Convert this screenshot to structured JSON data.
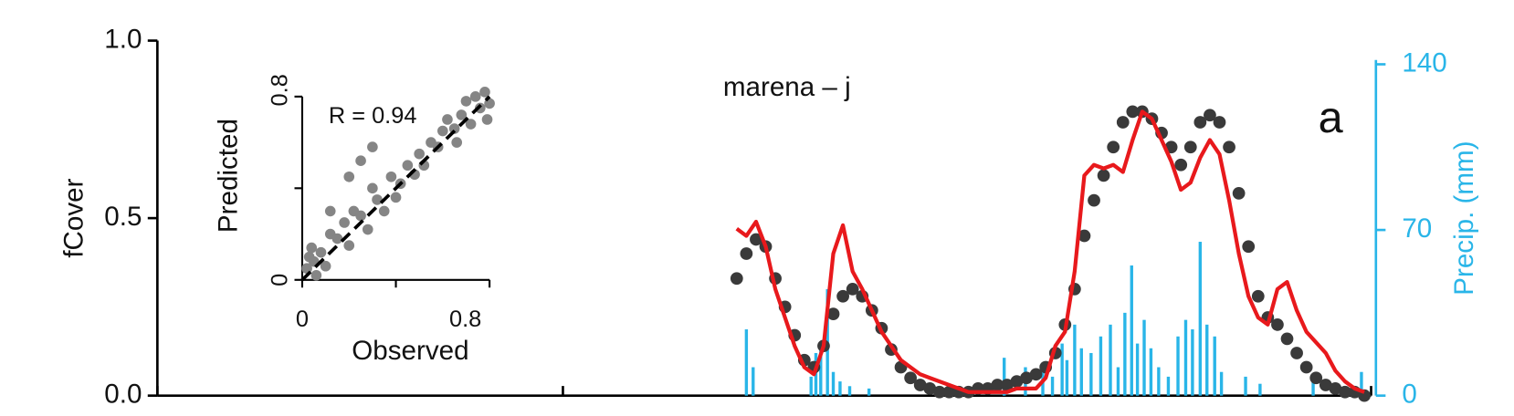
{
  "chart_data": [
    {
      "type": "combo",
      "title": "marena – j",
      "panel_label": "a",
      "y_label": "fCover",
      "y2_label": "Precip. (mm)",
      "xlim": [
        0,
        1257
      ],
      "xticks": [
        0,
        420,
        840,
        1257
      ],
      "ylim": [
        0,
        1
      ],
      "yticks": [
        {
          "value": 0,
          "label": "0.0"
        },
        {
          "value": 0.5,
          "label": "0.5"
        },
        {
          "value": 1,
          "label": "1.0"
        }
      ],
      "y2lim": [
        0,
        150
      ],
      "y2ticks": [
        0,
        70,
        140
      ],
      "y2_color": "#29b5e8",
      "x": [
        600,
        610,
        620,
        630,
        640,
        650,
        660,
        670,
        680,
        690,
        700,
        710,
        720,
        730,
        740,
        750,
        760,
        770,
        780,
        790,
        800,
        810,
        820,
        830,
        840,
        850,
        860,
        870,
        880,
        890,
        900,
        910,
        920,
        930,
        940,
        950,
        960,
        970,
        980,
        990,
        1000,
        1010,
        1020,
        1030,
        1040,
        1050,
        1060,
        1070,
        1080,
        1090,
        1100,
        1110,
        1120,
        1130,
        1140,
        1150,
        1160,
        1170,
        1180,
        1190,
        1200,
        1210,
        1220,
        1230,
        1240,
        1250
      ],
      "series": [
        {
          "type": "scatter",
          "color": "#3a3a3a",
          "values": [
            0.33,
            0.4,
            0.44,
            0.42,
            0.33,
            0.25,
            0.17,
            0.1,
            0.08,
            0.14,
            0.23,
            0.28,
            0.3,
            0.28,
            0.24,
            0.19,
            0.13,
            0.08,
            0.05,
            0.03,
            0.02,
            0.01,
            0.01,
            0.01,
            0.01,
            0.02,
            0.02,
            0.03,
            0.03,
            0.04,
            0.05,
            0.06,
            0.08,
            0.12,
            0.2,
            0.3,
            0.45,
            0.55,
            0.62,
            0.7,
            0.77,
            0.8,
            0.8,
            0.78,
            0.74,
            0.7,
            0.65,
            0.7,
            0.77,
            0.79,
            0.77,
            0.7,
            0.57,
            0.42,
            0.28,
            0.22,
            0.2,
            0.16,
            0.12,
            0.08,
            0.05,
            0.03,
            0.02,
            0.01,
            0.01,
            0.0
          ]
        },
        {
          "type": "line",
          "color": "#e8191c",
          "values": [
            0.47,
            0.45,
            0.49,
            0.42,
            0.3,
            0.22,
            0.14,
            0.08,
            0.06,
            0.14,
            0.4,
            0.48,
            0.35,
            0.3,
            0.24,
            0.18,
            0.14,
            0.1,
            0.08,
            0.06,
            0.05,
            0.04,
            0.03,
            0.02,
            0.01,
            0.01,
            0.01,
            0.01,
            0.01,
            0.02,
            0.02,
            0.02,
            0.05,
            0.14,
            0.18,
            0.35,
            0.62,
            0.65,
            0.64,
            0.65,
            0.63,
            0.72,
            0.8,
            0.78,
            0.72,
            0.66,
            0.58,
            0.6,
            0.67,
            0.72,
            0.68,
            0.55,
            0.4,
            0.28,
            0.22,
            0.2,
            0.3,
            0.32,
            0.24,
            0.18,
            0.15,
            0.12,
            0.07,
            0.04,
            0.02,
            0.01
          ]
        },
        {
          "type": "bar",
          "axis": "y2",
          "color": "#29b5e8",
          "x": [
            610,
            617,
            677,
            682,
            687,
            694,
            700,
            707,
            717,
            737,
            877,
            899,
            917,
            927,
            937,
            942,
            950,
            957,
            967,
            977,
            987,
            995,
            1002,
            1009,
            1015,
            1022,
            1029,
            1037,
            1047,
            1057,
            1065,
            1072,
            1080,
            1087,
            1095,
            1102,
            1127,
            1142,
            1197,
            1247
          ],
          "values": [
            28,
            12,
            8,
            18,
            22,
            45,
            10,
            6,
            4,
            3,
            16,
            12,
            10,
            8,
            22,
            15,
            30,
            20,
            18,
            25,
            30,
            12,
            35,
            55,
            22,
            32,
            20,
            12,
            8,
            25,
            32,
            28,
            65,
            30,
            25,
            10,
            8,
            5,
            8,
            10
          ]
        }
      ]
    },
    {
      "type": "scatter",
      "x_label": "Observed",
      "y_label": "Predicted",
      "annotation": "R = 0.94",
      "one_to_one_line": true,
      "xlim": [
        0,
        0.8
      ],
      "ylim": [
        0,
        0.8
      ],
      "xticks": [
        0,
        {
          "value": 0.4,
          "label": null
        },
        0.8
      ],
      "yticks": [
        0,
        {
          "value": 0.4,
          "label": null
        },
        0.8
      ],
      "x": [
        0.02,
        0.03,
        0.05,
        0.04,
        0.08,
        0.1,
        0.12,
        0.15,
        0.18,
        0.2,
        0.22,
        0.25,
        0.28,
        0.3,
        0.32,
        0.35,
        0.38,
        0.4,
        0.42,
        0.45,
        0.48,
        0.5,
        0.52,
        0.55,
        0.58,
        0.6,
        0.62,
        0.65,
        0.68,
        0.7,
        0.72,
        0.74,
        0.76,
        0.78,
        0.8,
        0.79,
        0.66,
        0.2,
        0.25,
        0.3,
        0.12,
        0.06
      ],
      "series": [
        {
          "color": "#858585",
          "values": [
            0.05,
            0.1,
            0.08,
            0.14,
            0.12,
            0.06,
            0.2,
            0.18,
            0.25,
            0.15,
            0.3,
            0.28,
            0.22,
            0.4,
            0.35,
            0.3,
            0.45,
            0.36,
            0.42,
            0.5,
            0.46,
            0.55,
            0.5,
            0.6,
            0.58,
            0.65,
            0.7,
            0.66,
            0.72,
            0.78,
            0.68,
            0.8,
            0.75,
            0.82,
            0.77,
            0.7,
            0.6,
            0.45,
            0.52,
            0.58,
            0.3,
            0.02
          ]
        }
      ]
    }
  ]
}
